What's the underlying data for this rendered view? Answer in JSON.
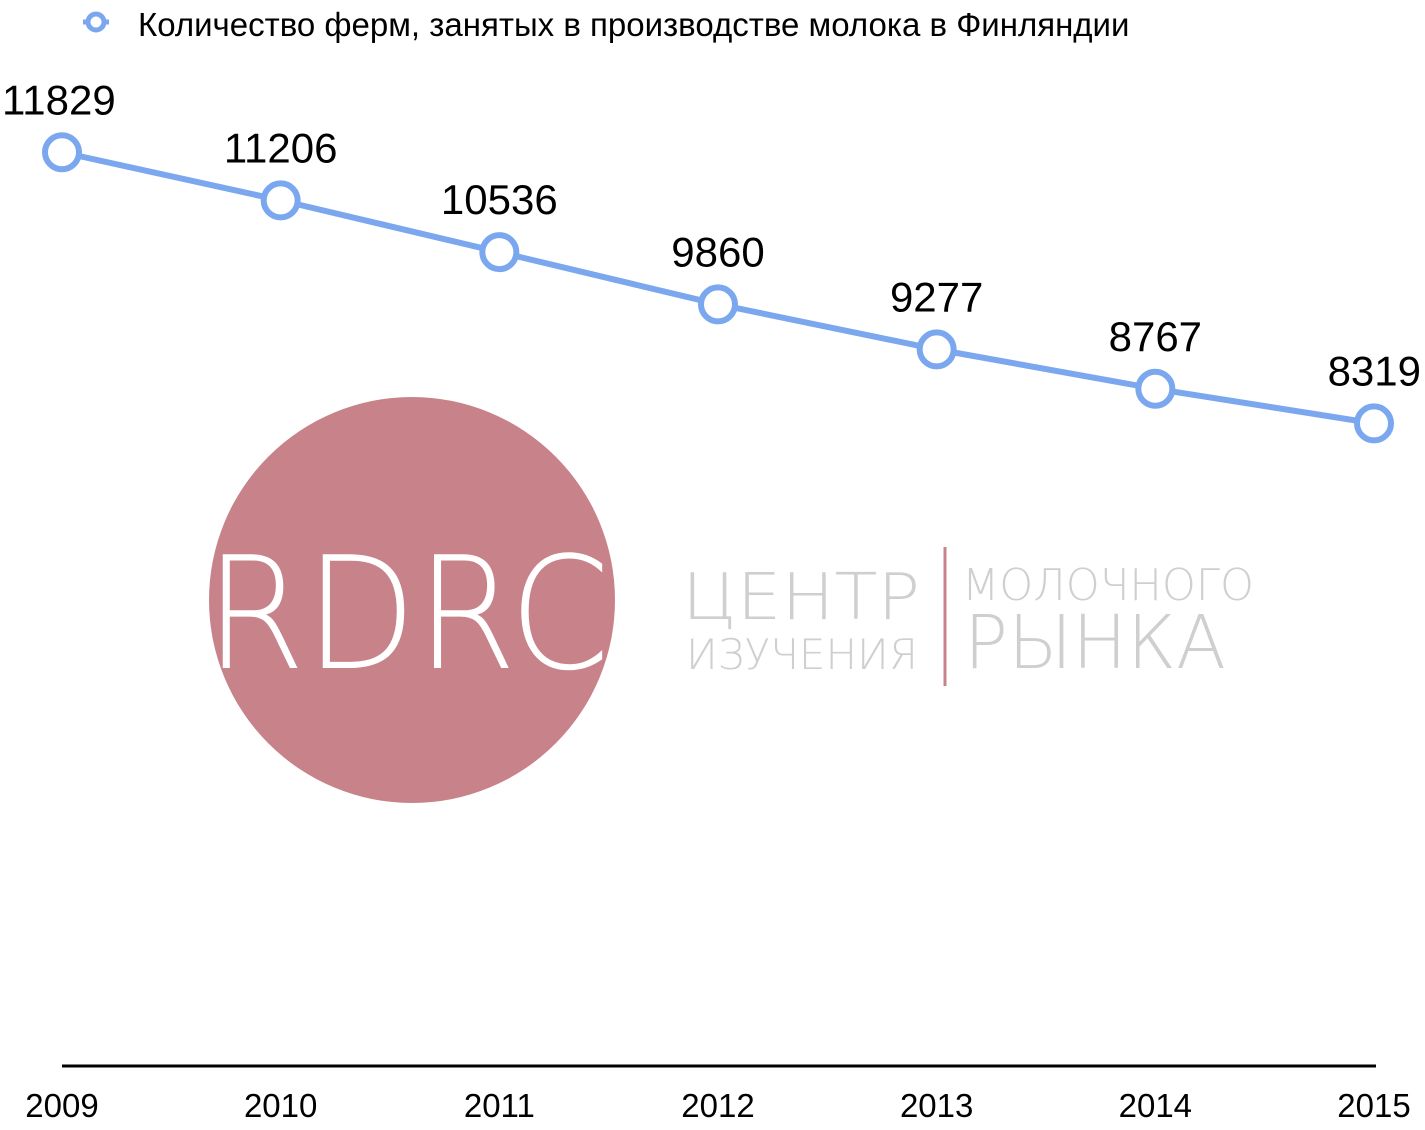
{
  "chart_data": {
    "type": "line",
    "categories": [
      "2009",
      "2010",
      "2011",
      "2012",
      "2013",
      "2014",
      "2015"
    ],
    "series": [
      {
        "name": "Количество ферм, занятых в производстве молока в Финляндии",
        "values": [
          11829,
          11206,
          10536,
          9860,
          9277,
          8767,
          8319
        ],
        "color": "#7ba7ee"
      }
    ],
    "data_labels": [
      "11829",
      "11206",
      "10536",
      "9860",
      "9277",
      "8767",
      "8319"
    ],
    "legend_position": "top-left",
    "grid": false,
    "ylim": [
      0,
      13800
    ]
  },
  "colors": {
    "series": "#7ba7ee",
    "axis": "#000000",
    "watermark_circle": "#c8838a",
    "watermark_text": "#cfcfcf"
  },
  "watermark": {
    "monogram": "RDRC",
    "word1": "ЦЕНТР",
    "word2": "ИЗУЧЕНИЯ",
    "word3": "МОЛОЧНОГО",
    "word4": "РЫНКА"
  }
}
